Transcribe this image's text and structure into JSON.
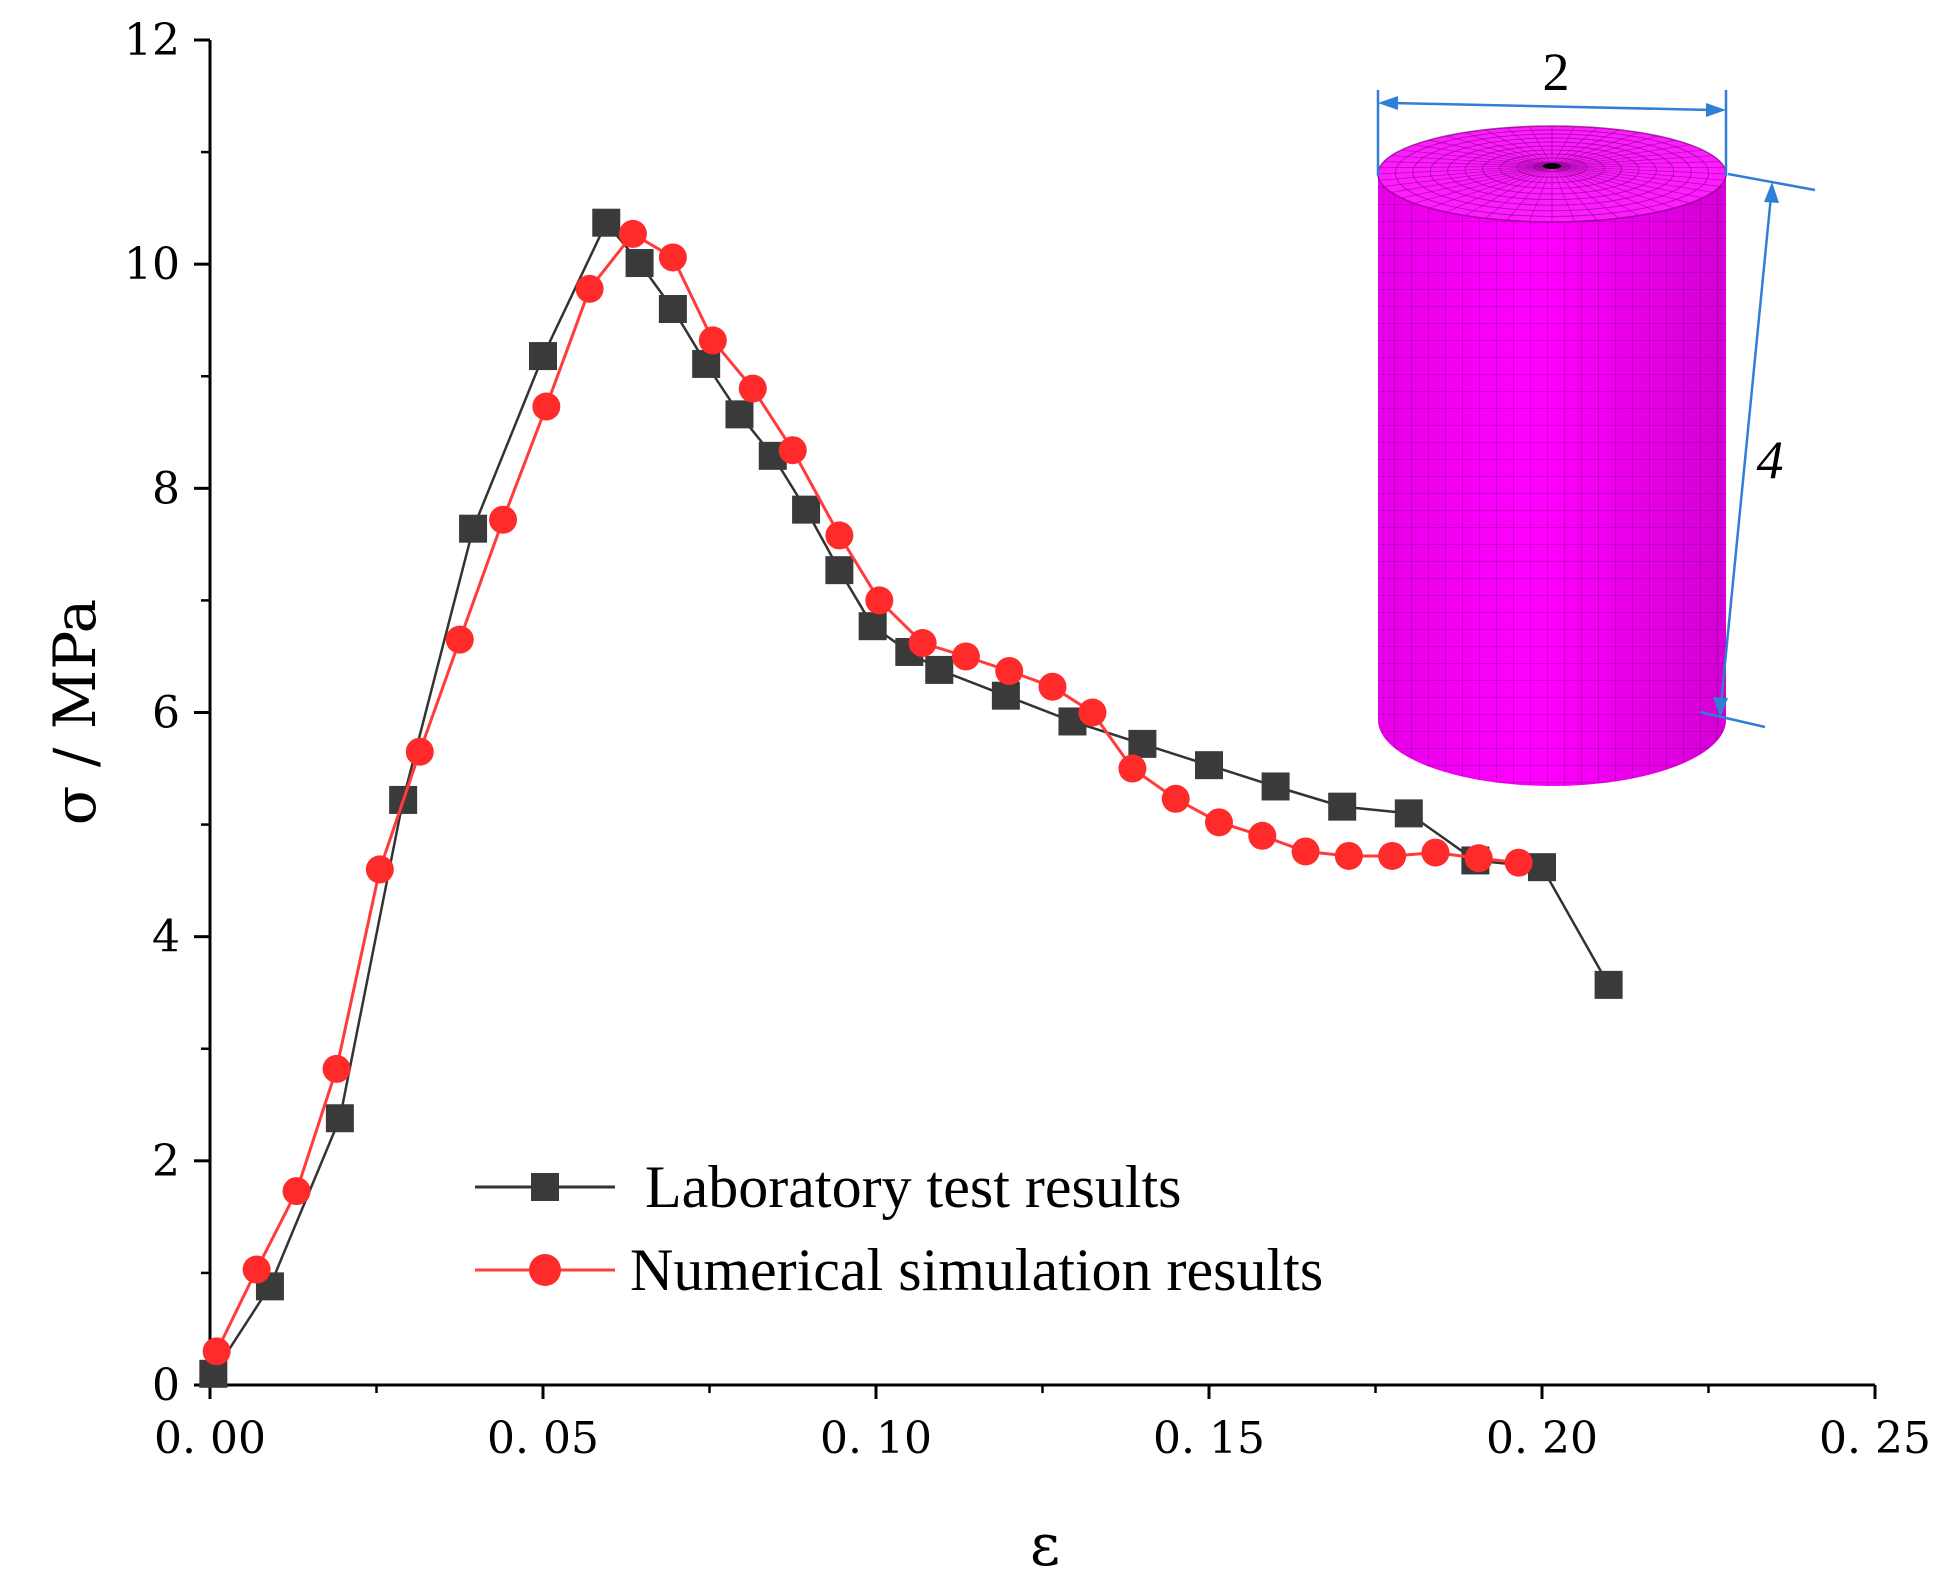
{
  "chart_data": {
    "type": "line",
    "title": "",
    "xlabel": "ε",
    "ylabel": "σ / MPa",
    "xlim": [
      0.0,
      0.25
    ],
    "ylim": [
      0,
      12
    ],
    "xticks": [
      0.0,
      0.05,
      0.1,
      0.15,
      0.2,
      0.25
    ],
    "xtick_labels": [
      "0. 00",
      "0. 05",
      "0. 10",
      "0. 15",
      "0. 20",
      "0. 25"
    ],
    "yticks": [
      0,
      2,
      4,
      6,
      8,
      10,
      12
    ],
    "ytick_labels": [
      "0",
      "2",
      "4",
      "6",
      "8",
      "10",
      "12"
    ],
    "grid": false,
    "legend_position": "bottom-center",
    "series": [
      {
        "name": "Laboratory test results",
        "color": "#333333",
        "marker": "square",
        "x": [
          0.0005,
          0.009,
          0.0195,
          0.029,
          0.0395,
          0.05,
          0.0595,
          0.0645,
          0.0695,
          0.0745,
          0.0795,
          0.0845,
          0.0895,
          0.0945,
          0.0995,
          0.105,
          0.1095,
          0.1195,
          0.1295,
          0.14,
          0.15,
          0.16,
          0.17,
          0.18,
          0.19,
          0.2,
          0.21
        ],
        "y": [
          0.1,
          0.88,
          2.38,
          5.22,
          7.64,
          9.18,
          10.37,
          10.01,
          9.6,
          9.11,
          8.66,
          8.29,
          7.81,
          7.27,
          6.77,
          6.54,
          6.38,
          6.15,
          5.92,
          5.72,
          5.53,
          5.34,
          5.16,
          5.1,
          4.68,
          4.62,
          3.57
        ]
      },
      {
        "name": "Numerical simulation results",
        "color": "#ff3b3b",
        "marker": "circle",
        "x": [
          0.001,
          0.007,
          0.013,
          0.019,
          0.0255,
          0.0315,
          0.0375,
          0.044,
          0.0505,
          0.057,
          0.0635,
          0.0695,
          0.0755,
          0.0815,
          0.0875,
          0.0945,
          0.1005,
          0.107,
          0.1135,
          0.12,
          0.1265,
          0.1325,
          0.1385,
          0.145,
          0.1515,
          0.158,
          0.1645,
          0.171,
          0.1775,
          0.184,
          0.1905,
          0.1965
        ],
        "y": [
          0.3,
          1.03,
          1.73,
          2.82,
          4.6,
          5.65,
          6.65,
          7.72,
          8.73,
          9.78,
          10.27,
          10.06,
          9.32,
          8.89,
          8.34,
          7.58,
          7.0,
          6.62,
          6.5,
          6.37,
          6.23,
          6.0,
          5.5,
          5.23,
          5.02,
          4.9,
          4.76,
          4.72,
          4.72,
          4.75,
          4.7,
          4.66
        ]
      }
    ]
  },
  "inset": {
    "diameter_label": "2",
    "height_label": "4",
    "mesh_color": "#ff00ff",
    "dimension_line_color": "#2f7fd6"
  }
}
